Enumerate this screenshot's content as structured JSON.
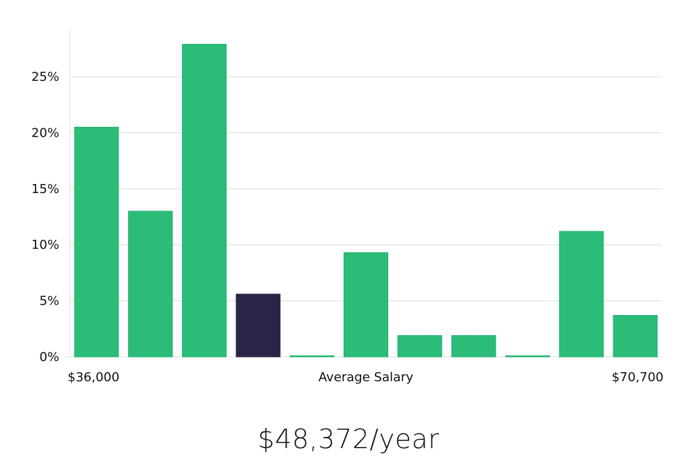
{
  "chart_data": {
    "type": "bar",
    "title": "",
    "xlabel": "Average Salary",
    "ylabel": "",
    "x_range_labels": {
      "min": "$36,000",
      "max": "$70,700"
    },
    "y_ticks": [
      "0%",
      "5%",
      "10%",
      "15%",
      "20%",
      "25%"
    ],
    "ylim": [
      0,
      29.3
    ],
    "grid": true,
    "values": [
      20.5,
      13.0,
      27.9,
      5.6,
      0.0,
      9.3,
      1.9,
      1.9,
      0.0,
      11.2,
      3.7
    ],
    "highlight_index": 3,
    "colors": {
      "bar": "#2bbd78",
      "highlight": "#292546",
      "grid": "#dcdcdc",
      "axis": "#e3e3e3"
    }
  },
  "salary_text": "$48,372/year"
}
